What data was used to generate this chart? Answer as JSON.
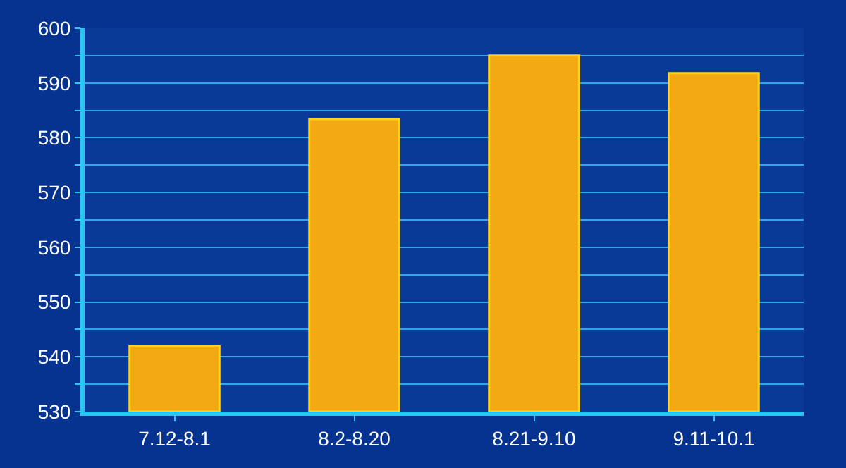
{
  "chart_data": {
    "type": "bar",
    "categories": [
      "7.12-8.1",
      "8.2-8.20",
      "8.21-9.10",
      "9.11-10.1"
    ],
    "values": [
      542,
      583.4,
      595,
      591.8
    ],
    "color": "#f3a912",
    "ylim": [
      530,
      600
    ],
    "yticks": [
      530,
      {
        "value": 535,
        "label": null
      },
      540,
      {
        "value": 545,
        "label": null
      },
      550,
      {
        "value": 555,
        "label": null
      },
      560,
      {
        "value": 565,
        "label": null
      },
      570,
      {
        "value": 575,
        "label": null
      },
      580,
      {
        "value": 585,
        "label": null
      },
      590,
      {
        "value": 595,
        "label": null
      },
      600
    ],
    "grid": "y"
  }
}
